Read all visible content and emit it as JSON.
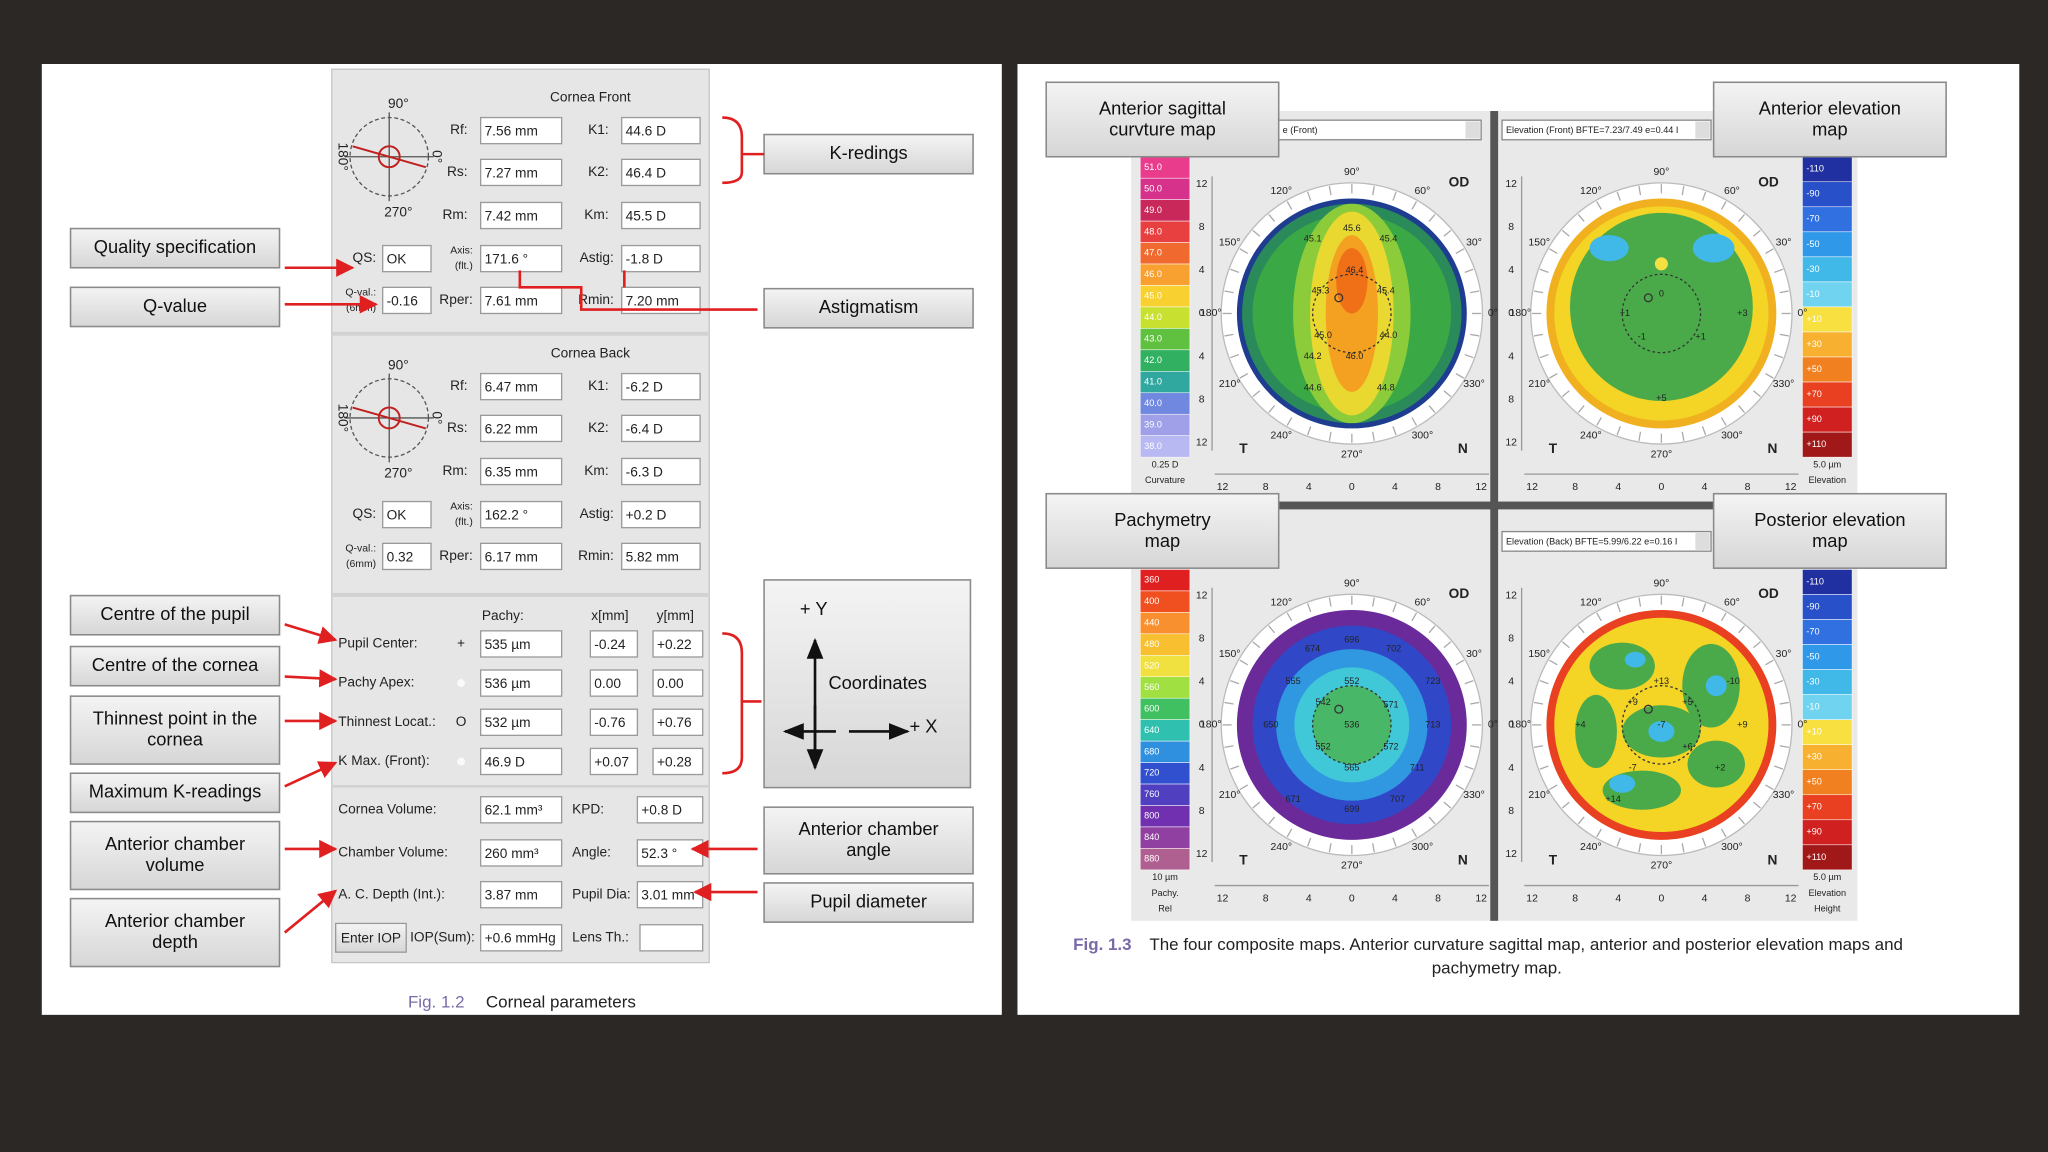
{
  "left_figure": {
    "cornea_front": {
      "title": "Cornea Front",
      "dial": [
        "90°",
        "180°",
        "270°",
        "0°"
      ],
      "rows": [
        [
          {
            "label": [
              "Rf:"
            ],
            "value": "7.56 mm"
          },
          {
            "label": [
              "K1:"
            ],
            "value": "44.6 D"
          }
        ],
        [
          {
            "label": [
              "Rs:"
            ],
            "value": "7.27 mm"
          },
          {
            "label": [
              "K2:"
            ],
            "value": "46.4 D"
          }
        ],
        [
          {
            "label": [
              "Rm:"
            ],
            "value": "7.42 mm"
          },
          {
            "label": [
              "Km:"
            ],
            "value": "45.5 D"
          }
        ],
        [
          {
            "label": [
              "QS:"
            ],
            "value": "OK"
          },
          {
            "label": [
              "Axis:",
              "(flt.)"
            ],
            "value": "171.6 °"
          },
          {
            "label": [
              "Astig:"
            ],
            "value": "-1.8 D"
          }
        ],
        [
          {
            "label": [
              "Q-val.:",
              "(6mm)"
            ],
            "value": "-0.16"
          },
          {
            "label": [
              "Rper:"
            ],
            "value": "7.61 mm"
          },
          {
            "label": [
              "Rmin:"
            ],
            "value": "7.20 mm"
          }
        ]
      ]
    },
    "cornea_back": {
      "title": "Cornea Back",
      "dial": [
        "90°",
        "180°",
        "270°",
        "0°"
      ],
      "rows": [
        [
          {
            "label": [
              "Rf:"
            ],
            "value": "6.47 mm"
          },
          {
            "label": [
              "K1:"
            ],
            "value": "-6.2 D"
          }
        ],
        [
          {
            "label": [
              "Rs:"
            ],
            "value": "6.22 mm"
          },
          {
            "label": [
              "K2:"
            ],
            "value": "-6.4 D"
          }
        ],
        [
          {
            "label": [
              "Rm:"
            ],
            "value": "6.35 mm"
          },
          {
            "label": [
              "Km:"
            ],
            "value": "-6.3 D"
          }
        ],
        [
          {
            "label": [
              "QS:"
            ],
            "value": "OK"
          },
          {
            "label": [
              "Axis:",
              "(flt.)"
            ],
            "value": "162.2 °"
          },
          {
            "label": [
              "Astig:"
            ],
            "value": "+0.2 D"
          }
        ],
        [
          {
            "label": [
              "Q-val.:",
              "(6mm)"
            ],
            "value": "0.32"
          },
          {
            "label": [
              "Rper:"
            ],
            "value": "6.17 mm"
          },
          {
            "label": [
              "Rmin:"
            ],
            "value": "5.82 mm"
          }
        ]
      ]
    },
    "pupil": {
      "headers": [
        "Pachy:",
        "x[mm]",
        "y[mm]"
      ],
      "rows": [
        {
          "label": "Pupil Center:",
          "symbol": "+",
          "values": [
            "535 µm",
            "-0.24",
            "+0.22"
          ]
        },
        {
          "label": "Pachy Apex:",
          "values": [
            "536 µm",
            "0.00",
            "0.00"
          ]
        },
        {
          "label": "Thinnest Locat.:",
          "symbol": "O",
          "values": [
            "532 µm",
            "-0.76",
            "+0.76"
          ]
        },
        {
          "label": "K Max. (Front):",
          "values": [
            "46.9 D",
            "+0.07",
            "+0.28"
          ]
        }
      ]
    },
    "volumes": [
      {
        "label": "Cornea Volume:",
        "value": "62.1 mm³",
        "label2": "KPD:",
        "value2": "+0.8 D"
      },
      {
        "label": "Chamber Volume:",
        "value": "260 mm³",
        "label2": "Angle:",
        "value2": "52.3 °"
      },
      {
        "label": "A. C. Depth (Int.):",
        "value": "3.87 mm",
        "label2": "Pupil Dia:",
        "value2": "3.01 mm"
      }
    ],
    "iop": {
      "button": "Enter IOP",
      "label": "IOP(Sum):",
      "value": "+0.6 mmHg",
      "label2": "Lens Th.:"
    },
    "callouts_left": [
      {
        "lines": [
          "Quality specification"
        ]
      },
      {
        "lines": [
          "Q-value"
        ]
      },
      {
        "lines": [
          "Centre of the pupil"
        ]
      },
      {
        "lines": [
          "Centre of the cornea"
        ]
      },
      {
        "lines": [
          "Thinnest point in the",
          "cornea"
        ]
      },
      {
        "lines": [
          "Maximum K-readings"
        ]
      },
      {
        "lines": [
          "Anterior chamber",
          "volume"
        ]
      },
      {
        "lines": [
          "Anterior chamber",
          "depth"
        ]
      }
    ],
    "callouts_right": [
      {
        "lines": [
          "K-redings"
        ]
      },
      {
        "lines": [
          "Astigmatism"
        ]
      },
      {
        "lines": [
          "Anterior chamber",
          "angle"
        ]
      },
      {
        "lines": [
          "Pupil diameter"
        ]
      }
    ],
    "coordinates": {
      "y": "+ Y",
      "x": "+ X",
      "title": "Coordinates"
    },
    "caption": {
      "number": "Fig. 1.2",
      "text": "Corneal parameters"
    }
  },
  "right_figure": {
    "axis_ticks": [
      "12",
      "8",
      "4",
      "0",
      "4",
      "8",
      "12"
    ],
    "angles": [
      "0°",
      "30°",
      "60°",
      "90°",
      "120°",
      "150°",
      "180°",
      "210°",
      "240°",
      "270°",
      "300°",
      "330°"
    ],
    "eye": "OD",
    "temporal": "T",
    "nasal": "N",
    "maps": [
      {
        "title": [
          "Anterior sagittal",
          "curvture map"
        ],
        "dropdown": "e (Front)",
        "legend": [
          "51.0",
          "50.0",
          "49.0",
          "48.0",
          "47.0",
          "46.0",
          "45.0",
          "44.0",
          "43.0",
          "42.0",
          "41.0",
          "40.0",
          "39.0",
          "38.0"
        ],
        "legend_footer": [
          "0.25 D",
          "Curvature"
        ],
        "values": [
          "45.6",
          "45.4",
          "45.1",
          "46.4",
          "45.3",
          "45.4",
          "45.0",
          "44.0",
          "46.0",
          "44.2",
          "44.6",
          "44.8"
        ]
      },
      {
        "title": [
          "Anterior elevation",
          "map"
        ],
        "dropdown": "Elevation (Front)  BFTE=7.23/7.49 e=0.44 I",
        "legend": [
          "-110",
          "-90",
          "-70",
          "-50",
          "-30",
          "-10",
          "+10",
          "+30",
          "+50",
          "+70",
          "+90",
          "+110"
        ],
        "legend_footer": [
          "5.0 µm",
          "Elevation"
        ],
        "values": [
          "0",
          "+1",
          "-1",
          "+3",
          "+5",
          "+1"
        ]
      },
      {
        "title": [
          "Pachymetry",
          "map"
        ],
        "legend": [
          "360",
          "400",
          "440",
          "480",
          "520",
          "560",
          "600",
          "640",
          "680",
          "720",
          "760",
          "800",
          "840",
          "880"
        ],
        "legend_footer": [
          "10 µm",
          "Pachy.",
          "Rel"
        ],
        "values": [
          "696",
          "702",
          "674",
          "552",
          "555",
          "723",
          "542",
          "571",
          "536",
          "713",
          "650",
          "552",
          "572",
          "565",
          "711",
          "671",
          "699",
          "707"
        ]
      },
      {
        "title": [
          "Posterior elevation",
          "map"
        ],
        "dropdown": "Elevation (Back)  BFTE=5.99/6.22 e=0.16 I",
        "legend": [
          "-110",
          "-90",
          "-70",
          "-50",
          "-30",
          "-10",
          "+10",
          "+30",
          "+50",
          "+70",
          "+90",
          "+110"
        ],
        "legend_footer": [
          "5.0 µm",
          "Elevation",
          "Height"
        ],
        "values": [
          "+13",
          "-10",
          "+9",
          "+5",
          "+4",
          "-7",
          "+9",
          "+6",
          "+2",
          "-7",
          "+14"
        ]
      }
    ],
    "caption": {
      "number": "Fig. 1.3",
      "lines": [
        "The four composite maps. Anterior curvature sagittal map, anterior and posterior elevation maps and",
        "pachymetry map."
      ]
    }
  }
}
